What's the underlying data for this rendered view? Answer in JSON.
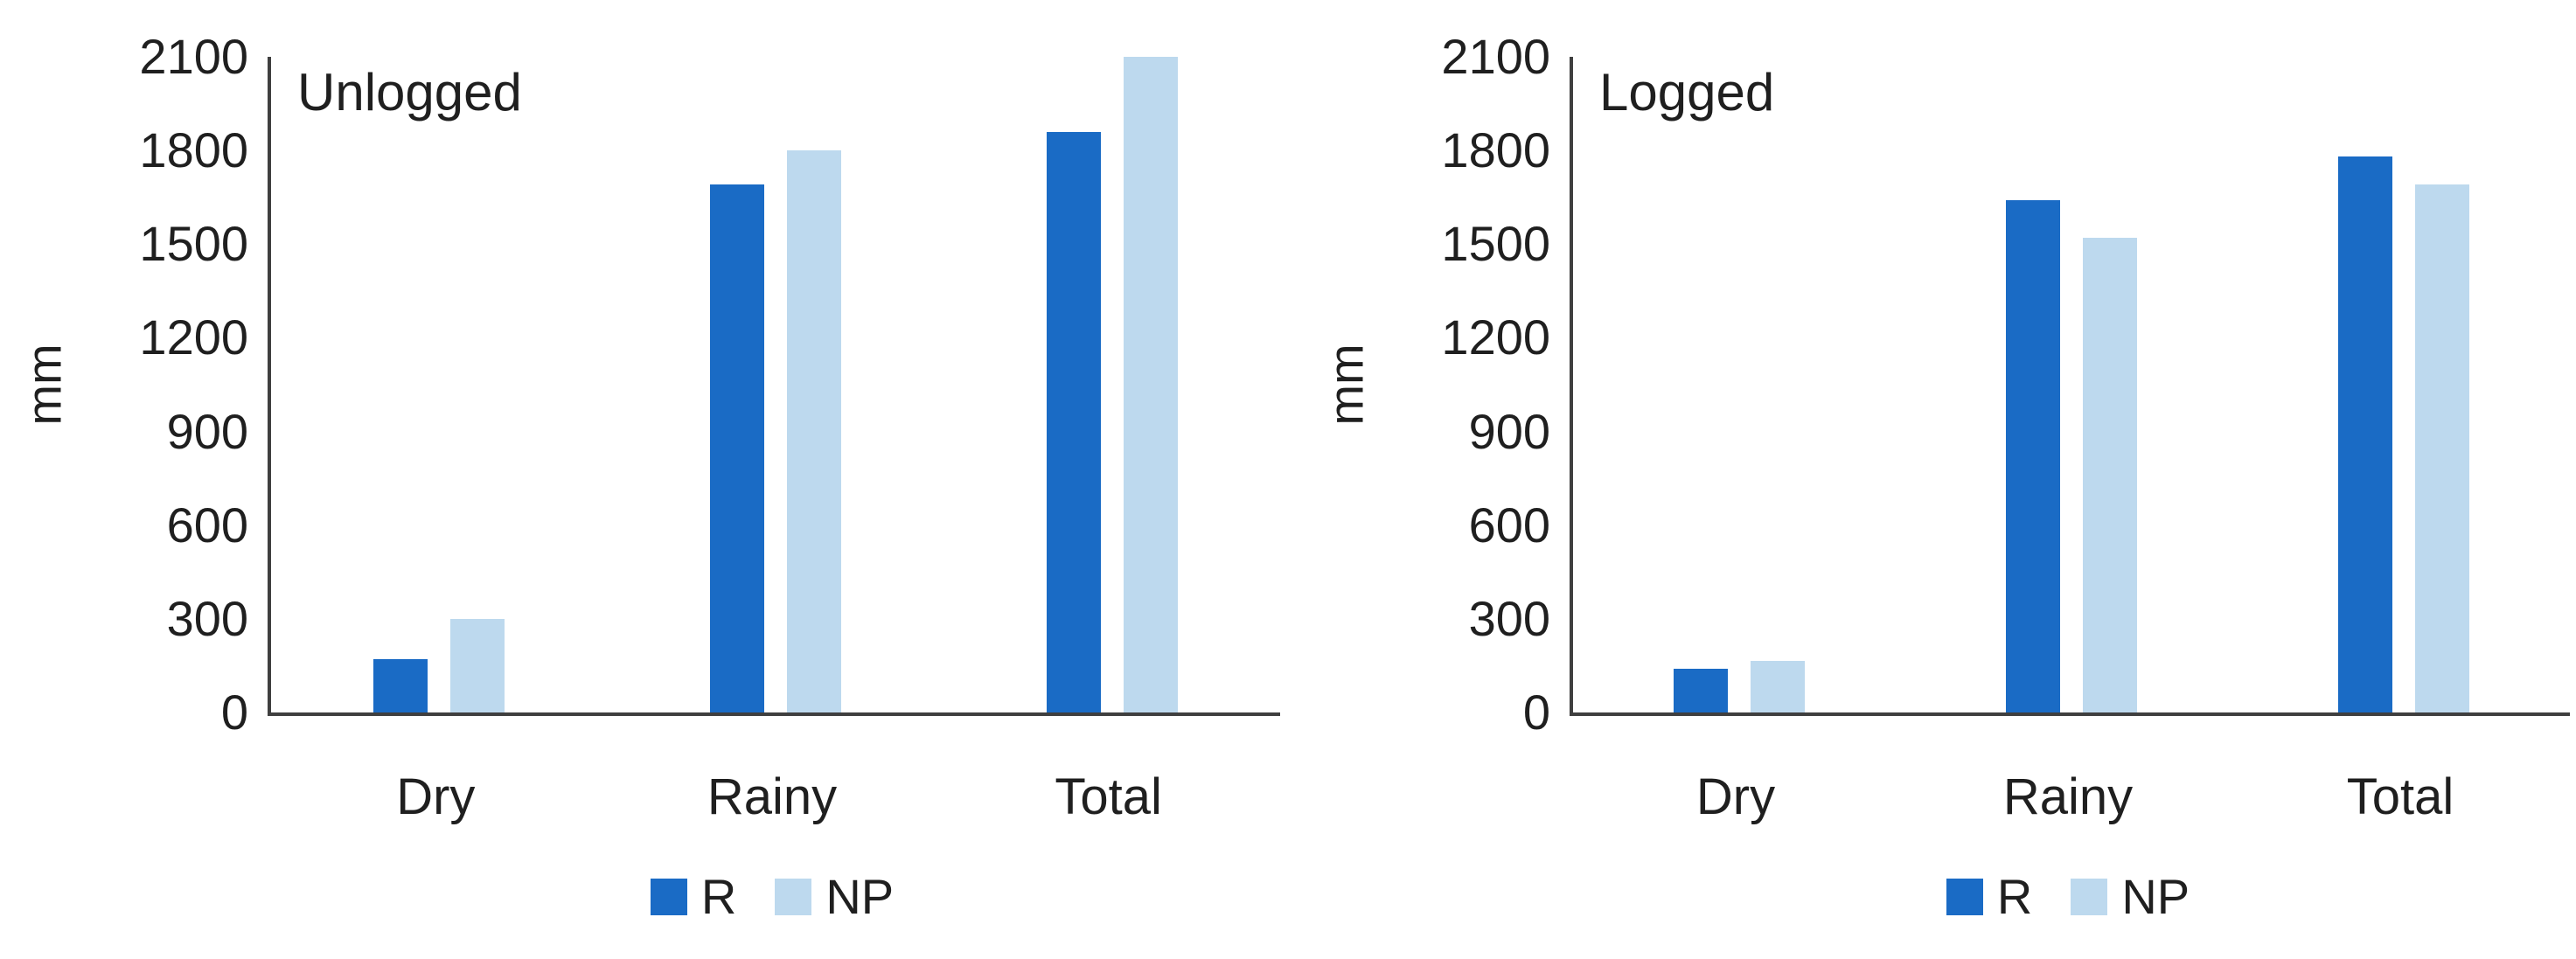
{
  "figure": {
    "background": "#ffffff",
    "axis_color": "#3f3f3f",
    "text_color": "#1f1f1f"
  },
  "chart_data": [
    {
      "type": "bar",
      "title": "Unlogged",
      "categories": [
        "Dry",
        "Rainy",
        "Total"
      ],
      "series": [
        {
          "name": "R",
          "color": "#1a6bc5",
          "values": [
            170,
            1690,
            1860
          ]
        },
        {
          "name": "NP",
          "color": "#bdd9ee",
          "values": [
            300,
            1800,
            2100
          ]
        }
      ],
      "xlabel": "",
      "ylabel": "mm",
      "ylim": [
        0,
        2100
      ],
      "yticks": [
        0,
        300,
        600,
        900,
        1200,
        1500,
        1800,
        2100
      ],
      "grid": false,
      "legend_position": "bottom"
    },
    {
      "type": "bar",
      "title": "Logged",
      "categories": [
        "Dry",
        "Rainy",
        "Total"
      ],
      "series": [
        {
          "name": "R",
          "color": "#1a6bc5",
          "values": [
            140,
            1640,
            1780
          ]
        },
        {
          "name": "NP",
          "color": "#bdd9ee",
          "values": [
            165,
            1520,
            1690
          ]
        }
      ],
      "xlabel": "",
      "ylabel": "mm",
      "ylim": [
        0,
        2100
      ],
      "yticks": [
        0,
        300,
        600,
        900,
        1200,
        1500,
        1800,
        2100
      ],
      "grid": false,
      "legend_position": "bottom"
    }
  ]
}
